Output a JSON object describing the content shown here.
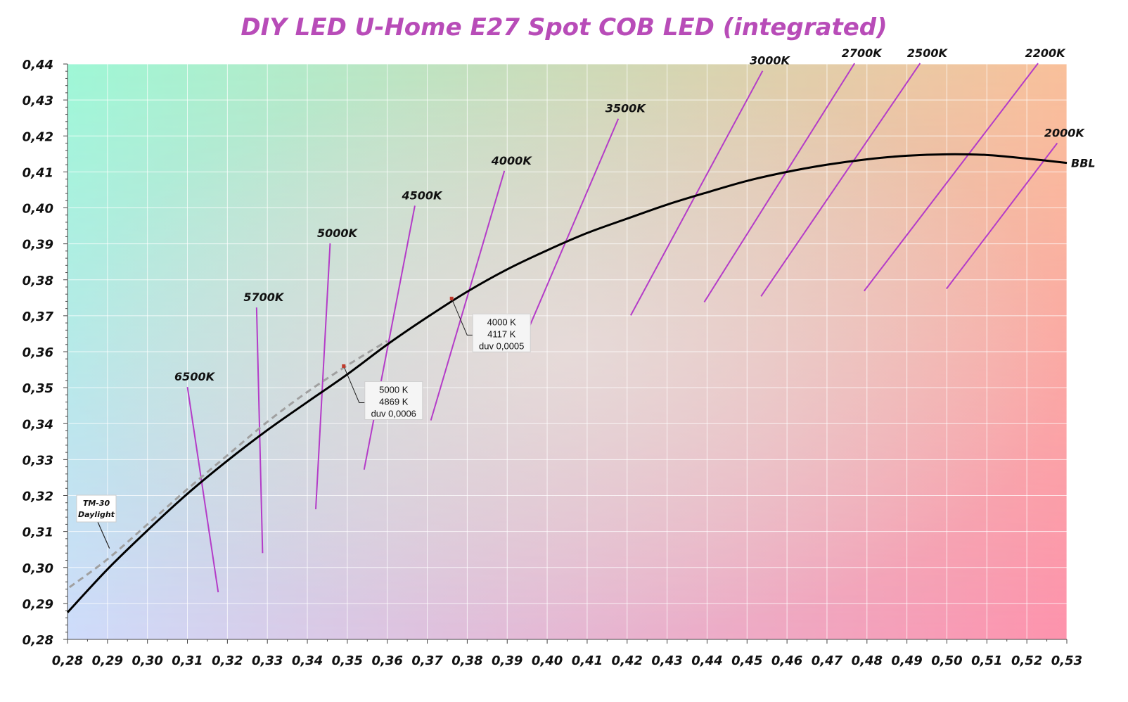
{
  "chart_data": {
    "type": "line",
    "title": "DIY LED U-Home E27 Spot COB LED (integrated)",
    "title_color": "#b84cb8",
    "xlim": [
      0.28,
      0.53
    ],
    "ylim": [
      0.28,
      0.44
    ],
    "x_ticks": [
      "0,28",
      "0,29",
      "0,30",
      "0,31",
      "0,32",
      "0,33",
      "0,34",
      "0,35",
      "0,36",
      "0,37",
      "0,38",
      "0,39",
      "0,40",
      "0,41",
      "0,42",
      "0,43",
      "0,44",
      "0,45",
      "0,46",
      "0,47",
      "0,48",
      "0,49",
      "0,50",
      "0,51",
      "0,52",
      "0,53"
    ],
    "y_ticks": [
      "0,28",
      "0,29",
      "0,30",
      "0,31",
      "0,32",
      "0,33",
      "0,34",
      "0,35",
      "0,36",
      "0,37",
      "0,38",
      "0,39",
      "0,40",
      "0,41",
      "0,42",
      "0,43",
      "0,44"
    ],
    "grid": true,
    "gradient_colors": {
      "top_left": "#9ef7d6",
      "top_right": "#f9c09a",
      "bottom_left": "#cfdcfb",
      "bottom_right": "#fd93ad",
      "center": "#f1e8e8"
    },
    "bbl": {
      "label": "BBL",
      "color": "#000000",
      "points": [
        [
          0.28,
          0.2875
        ],
        [
          0.29,
          0.2995
        ],
        [
          0.3,
          0.3103
        ],
        [
          0.31,
          0.3205
        ],
        [
          0.32,
          0.3297
        ],
        [
          0.33,
          0.3382
        ],
        [
          0.34,
          0.346
        ],
        [
          0.35,
          0.3537
        ],
        [
          0.36,
          0.362
        ],
        [
          0.37,
          0.3696
        ],
        [
          0.38,
          0.3767
        ],
        [
          0.39,
          0.3829
        ],
        [
          0.4,
          0.3882
        ],
        [
          0.41,
          0.393
        ],
        [
          0.42,
          0.397
        ],
        [
          0.43,
          0.4009
        ],
        [
          0.44,
          0.4043
        ],
        [
          0.45,
          0.4075
        ],
        [
          0.46,
          0.41
        ],
        [
          0.47,
          0.412
        ],
        [
          0.48,
          0.4135
        ],
        [
          0.49,
          0.4145
        ],
        [
          0.5,
          0.4149
        ],
        [
          0.51,
          0.4147
        ],
        [
          0.52,
          0.4137
        ],
        [
          0.53,
          0.4125
        ]
      ]
    },
    "daylight": {
      "label": [
        "TM-30",
        "Daylight"
      ],
      "color": "#a0a0a0",
      "points": [
        [
          0.2805,
          0.2945
        ],
        [
          0.29,
          0.3023
        ],
        [
          0.3,
          0.312
        ],
        [
          0.31,
          0.3218
        ],
        [
          0.32,
          0.3312
        ],
        [
          0.33,
          0.3405
        ],
        [
          0.34,
          0.3488
        ],
        [
          0.35,
          0.3562
        ],
        [
          0.36,
          0.363
        ]
      ]
    },
    "cct_lines": [
      {
        "label": "6500K",
        "x1": 0.31,
        "y1": 0.3502,
        "x2": 0.3177,
        "y2": 0.2931
      },
      {
        "label": "5700K",
        "x1": 0.3273,
        "y1": 0.3723,
        "x2": 0.3288,
        "y2": 0.304
      },
      {
        "label": "5000K",
        "x1": 0.3457,
        "y1": 0.3901,
        "x2": 0.3421,
        "y2": 0.3162
      },
      {
        "label": "4500K",
        "x1": 0.3669,
        "y1": 0.4006,
        "x2": 0.3542,
        "y2": 0.3272
      },
      {
        "label": "4000K",
        "x1": 0.3893,
        "y1": 0.4103,
        "x2": 0.3709,
        "y2": 0.3409
      },
      {
        "label": "3500K",
        "x1": 0.4178,
        "y1": 0.4248,
        "x2": 0.3943,
        "y2": 0.3637
      },
      {
        "label": "3000K",
        "x1": 0.4539,
        "y1": 0.4381,
        "x2": 0.4209,
        "y2": 0.3701
      },
      {
        "label": "2700K",
        "x1": 0.4769,
        "y1": 0.4402,
        "x2": 0.4393,
        "y2": 0.3738
      },
      {
        "label": "2500K",
        "x1": 0.4933,
        "y1": 0.4402,
        "x2": 0.4535,
        "y2": 0.3754
      },
      {
        "label": "2200K",
        "x1": 0.5228,
        "y1": 0.4402,
        "x2": 0.4793,
        "y2": 0.3769
      },
      {
        "label": "2000K",
        "x1": 0.5276,
        "y1": 0.418,
        "x2": 0.4999,
        "y2": 0.3775
      }
    ],
    "cct_line_color": "#b43cc8",
    "bbl_label_x": 0.53,
    "bbl_label_y": 0.4125,
    "measurements": [
      {
        "x": 0.3761,
        "y": 0.3748,
        "text": [
          "4000 K",
          "4117 K",
          "duv 0,0005"
        ]
      },
      {
        "x": 0.3491,
        "y": 0.356,
        "text": [
          "5000 K",
          "4869 K",
          "duv 0,0006"
        ]
      }
    ],
    "marker_color": "#c0392b"
  }
}
